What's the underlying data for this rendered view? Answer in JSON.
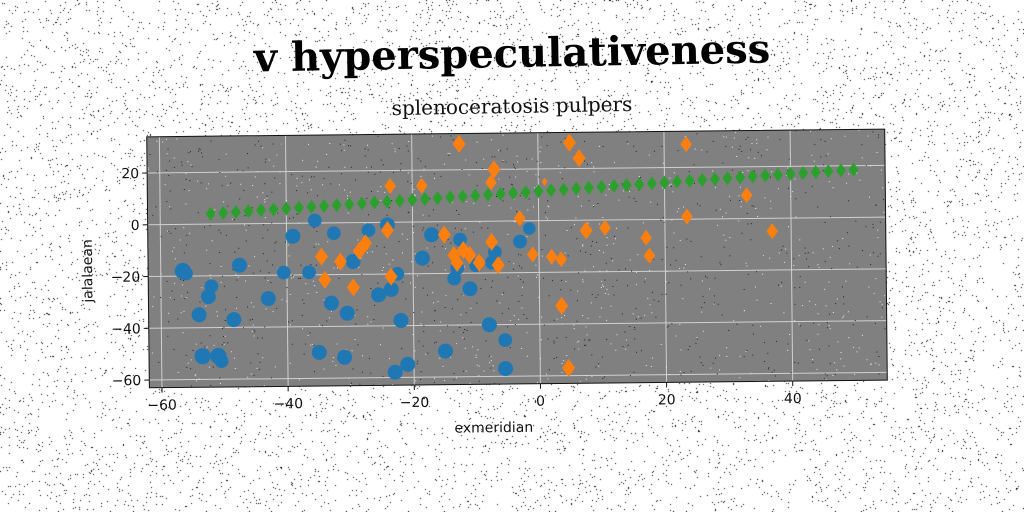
{
  "title": "v hyperspeculativeness",
  "chart_data": {
    "type": "scatter",
    "title": "splenoceratosis pulpers",
    "xlabel": "exmeridian",
    "ylabel": "jalalaean",
    "xlim": [
      -62,
      55
    ],
    "ylim": [
      -63,
      34
    ],
    "xticks": [
      -60,
      -40,
      -20,
      0,
      20,
      40
    ],
    "yticks": [
      -60,
      -40,
      -20,
      0,
      20
    ],
    "grid": true,
    "legend": "none",
    "background": "#808080",
    "gridColor": "#d0d0d0",
    "series": [
      {
        "color": "#1f77b4",
        "marker": "circle",
        "x": [
          -56.5,
          -53.5,
          -51,
          -52.5,
          -54,
          -48.5,
          -47.5,
          -56,
          -52,
          -50.5,
          -43,
          -39,
          -40.5,
          -36.5,
          -35,
          -33,
          -31,
          -30.5,
          -29.5,
          -27,
          -25.5,
          -23.5,
          -23,
          -21,
          -22,
          -24,
          -18.5,
          -17,
          -15,
          -13.5,
          -12.5,
          -11,
          -10,
          -8,
          -7.5,
          -5.5,
          -7,
          -5.5,
          -3,
          -1.5,
          -13,
          -22.5,
          -32.5,
          -35.5
        ],
        "y": [
          -18,
          -51,
          -51,
          -28,
          -35,
          -37,
          -16,
          -19,
          -24,
          -53,
          -29,
          -5,
          -19,
          -19,
          -50,
          -31,
          -52,
          -35,
          -15,
          -3,
          -28,
          -26,
          -58,
          -55,
          -38,
          -1,
          -14,
          -5,
          -50,
          -22,
          -7,
          -26,
          -17,
          -40,
          -16,
          -57,
          -12,
          -46,
          -8,
          -3,
          -18,
          -20,
          -4,
          1
        ],
        "sizes": [
          13,
          13,
          13,
          12,
          12,
          12,
          12,
          11,
          11,
          11,
          12,
          12,
          11,
          11,
          12,
          12,
          12,
          12,
          12,
          11,
          12,
          12,
          12,
          12,
          12,
          12,
          12,
          12,
          12,
          11,
          11,
          12,
          11,
          12,
          11,
          12,
          11,
          11,
          11,
          10,
          11,
          11,
          11,
          11
        ]
      },
      {
        "color": "#ff7f0e",
        "marker": "diamond",
        "x": [
          -12.5,
          -7,
          -7.5,
          -23.5,
          -18.5,
          -3,
          -1,
          1,
          5,
          6.5,
          7.5,
          10.5,
          17,
          17.5,
          23.5,
          23.5,
          33,
          37,
          -34.5,
          -34,
          -31.5,
          -29.5,
          -27.5,
          -28.5,
          -24,
          -23.5,
          -15,
          -13.5,
          -13,
          -12,
          -11,
          -9.5,
          -7.5,
          -6.5,
          2,
          3.5,
          3.5,
          4.5
        ],
        "y": [
          30,
          20,
          15,
          14,
          14,
          1,
          -13,
          15,
          30,
          24,
          -4,
          -3,
          -7,
          -14,
          29,
          1,
          9,
          -5,
          -13,
          -22,
          -15,
          -25,
          -8,
          -11,
          -3,
          -21,
          -5,
          -13,
          -16,
          -11,
          -13,
          -16,
          -8,
          -17,
          -14,
          -33,
          -15,
          -57
        ],
        "sizes": [
          9,
          9,
          8,
          8,
          8,
          8,
          8,
          4,
          9,
          9,
          9,
          8,
          8,
          8,
          8,
          8,
          8,
          8,
          9,
          9,
          9,
          9,
          9,
          9,
          9,
          9,
          9,
          9,
          9,
          9,
          9,
          9,
          9,
          9,
          8,
          9,
          8,
          9
        ]
      },
      {
        "color": "#2ca02c",
        "marker": "diamond",
        "x_start": -52,
        "x_end": 50,
        "y_start": 4,
        "y_end": 18.5,
        "count": 52,
        "size": 7
      }
    ]
  }
}
